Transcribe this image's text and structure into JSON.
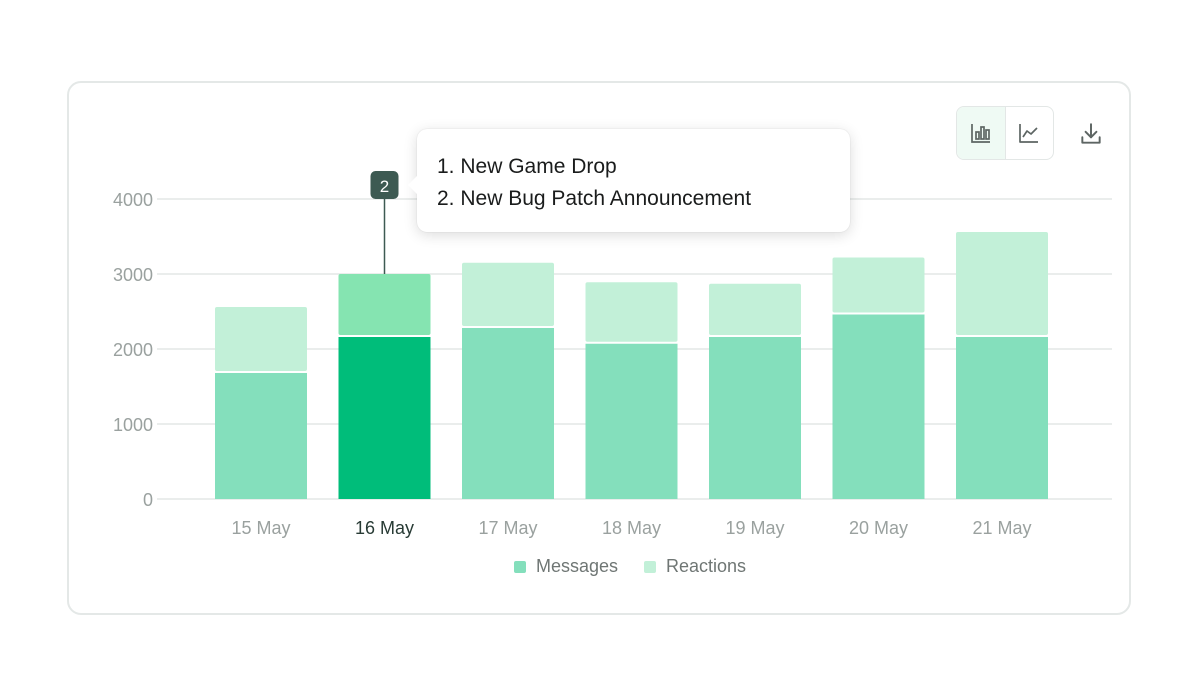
{
  "toolbar": {
    "chart_type_buttons": [
      {
        "icon": "bar-chart-icon",
        "active": true
      },
      {
        "icon": "line-chart-icon",
        "active": false
      }
    ],
    "download_icon": "download-icon"
  },
  "tooltip": {
    "marker_count": "2",
    "items": [
      "1. New Game Drop",
      "2. New Bug Patch Announcement"
    ]
  },
  "colors": {
    "messages": "#84dfbc",
    "reactions": "#c2f0d8",
    "messages_highlight": "#00bd7a",
    "reactions_highlight": "#85e4b1",
    "grid": "#e3e7e6",
    "tick": "#9aa19f",
    "tick_active": "#283b35",
    "marker": "#3d5a52"
  },
  "chart_data": {
    "type": "bar",
    "stacked": true,
    "categories": [
      "15 May",
      "16 May",
      "17 May",
      "18 May",
      "19 May",
      "20 May",
      "21 May"
    ],
    "series": [
      {
        "name": "Messages",
        "values": [
          1680,
          2160,
          2280,
          2070,
          2160,
          2460,
          2160
        ]
      },
      {
        "name": "Reactions",
        "values": [
          880,
          840,
          870,
          820,
          710,
          760,
          1400
        ]
      }
    ],
    "highlighted_category": "16 May",
    "y_ticks": [
      0,
      1000,
      2000,
      3000,
      4000
    ],
    "ylim": [
      0,
      4000
    ],
    "grid": true,
    "legend": "bottom"
  }
}
